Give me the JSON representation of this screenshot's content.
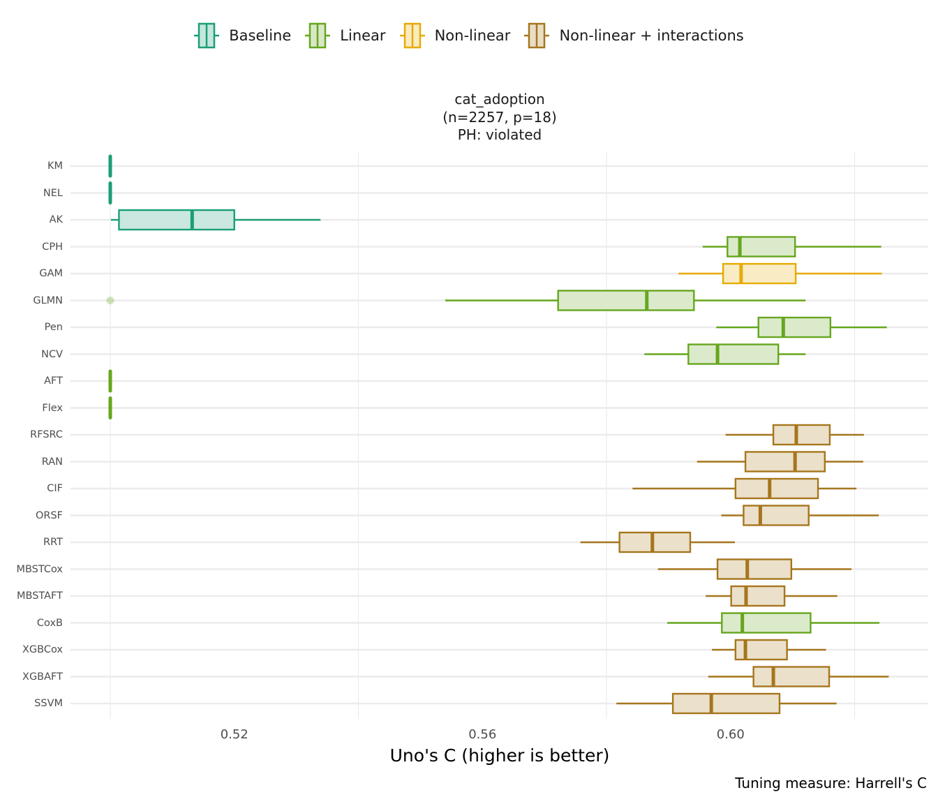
{
  "legend": {
    "items": [
      {
        "label": "Baseline",
        "color": "#1b9e77",
        "fill": "#c5e6dc"
      },
      {
        "label": "Linear",
        "color": "#66a61e",
        "fill": "#d8e8c7"
      },
      {
        "label": "Non-linear",
        "color": "#e6ab02",
        "fill": "#f9eac0"
      },
      {
        "label": "Non-linear + interactions",
        "color": "#a6761d",
        "fill": "#e9ddc6"
      }
    ]
  },
  "title": {
    "line1": "cat_adoption",
    "line2": "(n=2257, p=18)",
    "line3": "PH: violated"
  },
  "caption": "Tuning measure: Harrell's C",
  "chart_data": {
    "type": "boxplot-horizontal",
    "title": "cat_adoption (n=2257, p=18) PH: violated",
    "xlabel": "Uno's C (higher is better)",
    "ylabel": "",
    "xlim": [
      0.4935,
      0.6315
    ],
    "x_ticks": [
      0.52,
      0.56,
      0.6
    ],
    "x_tick_labels": [
      "0.52",
      "0.56",
      "0.60"
    ],
    "minor_gridlines": [
      0.5,
      0.54,
      0.58,
      0.62
    ],
    "legend_position": "top",
    "groups": [
      "Baseline",
      "Linear",
      "Non-linear",
      "Non-linear + interactions"
    ],
    "series": [
      {
        "name": "KM",
        "group": "Baseline",
        "min": 0.5,
        "q1": 0.5,
        "median": 0.5,
        "q3": 0.5,
        "max": 0.5,
        "outliers": []
      },
      {
        "name": "NEL",
        "group": "Baseline",
        "min": 0.5,
        "q1": 0.5,
        "median": 0.5,
        "q3": 0.5,
        "max": 0.5,
        "outliers": []
      },
      {
        "name": "AK",
        "group": "Baseline",
        "min": 0.5001,
        "q1": 0.5014,
        "median": 0.5132,
        "q3": 0.52,
        "max": 0.5339,
        "outliers": []
      },
      {
        "name": "CPH",
        "group": "Linear",
        "min": 0.5955,
        "q1": 0.5995,
        "median": 0.6015,
        "q3": 0.6104,
        "max": 0.6243,
        "outliers": []
      },
      {
        "name": "GAM",
        "group": "Non-linear",
        "min": 0.5916,
        "q1": 0.5988,
        "median": 0.6017,
        "q3": 0.6105,
        "max": 0.6244,
        "outliers": []
      },
      {
        "name": "GLMN",
        "group": "Linear",
        "min": 0.554,
        "q1": 0.5722,
        "median": 0.5865,
        "q3": 0.5941,
        "max": 0.6121,
        "outliers": [
          0.5
        ]
      },
      {
        "name": "Pen",
        "group": "Linear",
        "min": 0.5977,
        "q1": 0.6045,
        "median": 0.6085,
        "q3": 0.6161,
        "max": 0.6252,
        "outliers": []
      },
      {
        "name": "NCV",
        "group": "Linear",
        "min": 0.5861,
        "q1": 0.5932,
        "median": 0.5979,
        "q3": 0.6077,
        "max": 0.6121,
        "outliers": []
      },
      {
        "name": "AFT",
        "group": "Linear",
        "min": 0.5,
        "q1": 0.5,
        "median": 0.5,
        "q3": 0.5,
        "max": 0.5,
        "outliers": []
      },
      {
        "name": "Flex",
        "group": "Linear",
        "min": 0.5,
        "q1": 0.5,
        "median": 0.5,
        "q3": 0.5,
        "max": 0.5,
        "outliers": []
      },
      {
        "name": "RFSRC",
        "group": "Non-linear + interactions",
        "min": 0.5992,
        "q1": 0.6069,
        "median": 0.6106,
        "q3": 0.616,
        "max": 0.6215,
        "outliers": []
      },
      {
        "name": "RAN",
        "group": "Non-linear + interactions",
        "min": 0.5946,
        "q1": 0.6024,
        "median": 0.6104,
        "q3": 0.6152,
        "max": 0.6214,
        "outliers": []
      },
      {
        "name": "CIF",
        "group": "Non-linear + interactions",
        "min": 0.5842,
        "q1": 0.6008,
        "median": 0.6063,
        "q3": 0.6141,
        "max": 0.6203,
        "outliers": []
      },
      {
        "name": "ORSF",
        "group": "Non-linear + interactions",
        "min": 0.5985,
        "q1": 0.6021,
        "median": 0.6048,
        "q3": 0.6126,
        "max": 0.6239,
        "outliers": []
      },
      {
        "name": "RRT",
        "group": "Non-linear + interactions",
        "min": 0.5758,
        "q1": 0.5821,
        "median": 0.5874,
        "q3": 0.5935,
        "max": 0.6007,
        "outliers": []
      },
      {
        "name": "MBSTCox",
        "group": "Non-linear + interactions",
        "min": 0.5883,
        "q1": 0.5979,
        "median": 0.6027,
        "q3": 0.6098,
        "max": 0.6195,
        "outliers": []
      },
      {
        "name": "MBSTAFT",
        "group": "Non-linear + interactions",
        "min": 0.596,
        "q1": 0.6001,
        "median": 0.6025,
        "q3": 0.6087,
        "max": 0.6172,
        "outliers": []
      },
      {
        "name": "CoxB",
        "group": "Linear",
        "min": 0.5898,
        "q1": 0.5986,
        "median": 0.6019,
        "q3": 0.6129,
        "max": 0.624,
        "outliers": []
      },
      {
        "name": "XGBCox",
        "group": "Non-linear + interactions",
        "min": 0.597,
        "q1": 0.6008,
        "median": 0.6024,
        "q3": 0.6091,
        "max": 0.6154,
        "outliers": []
      },
      {
        "name": "XGBAFT",
        "group": "Non-linear + interactions",
        "min": 0.5964,
        "q1": 0.6037,
        "median": 0.6069,
        "q3": 0.6159,
        "max": 0.6255,
        "outliers": []
      },
      {
        "name": "SSVM",
        "group": "Non-linear + interactions",
        "min": 0.5816,
        "q1": 0.5907,
        "median": 0.5969,
        "q3": 0.6079,
        "max": 0.6171,
        "outliers": []
      }
    ]
  }
}
